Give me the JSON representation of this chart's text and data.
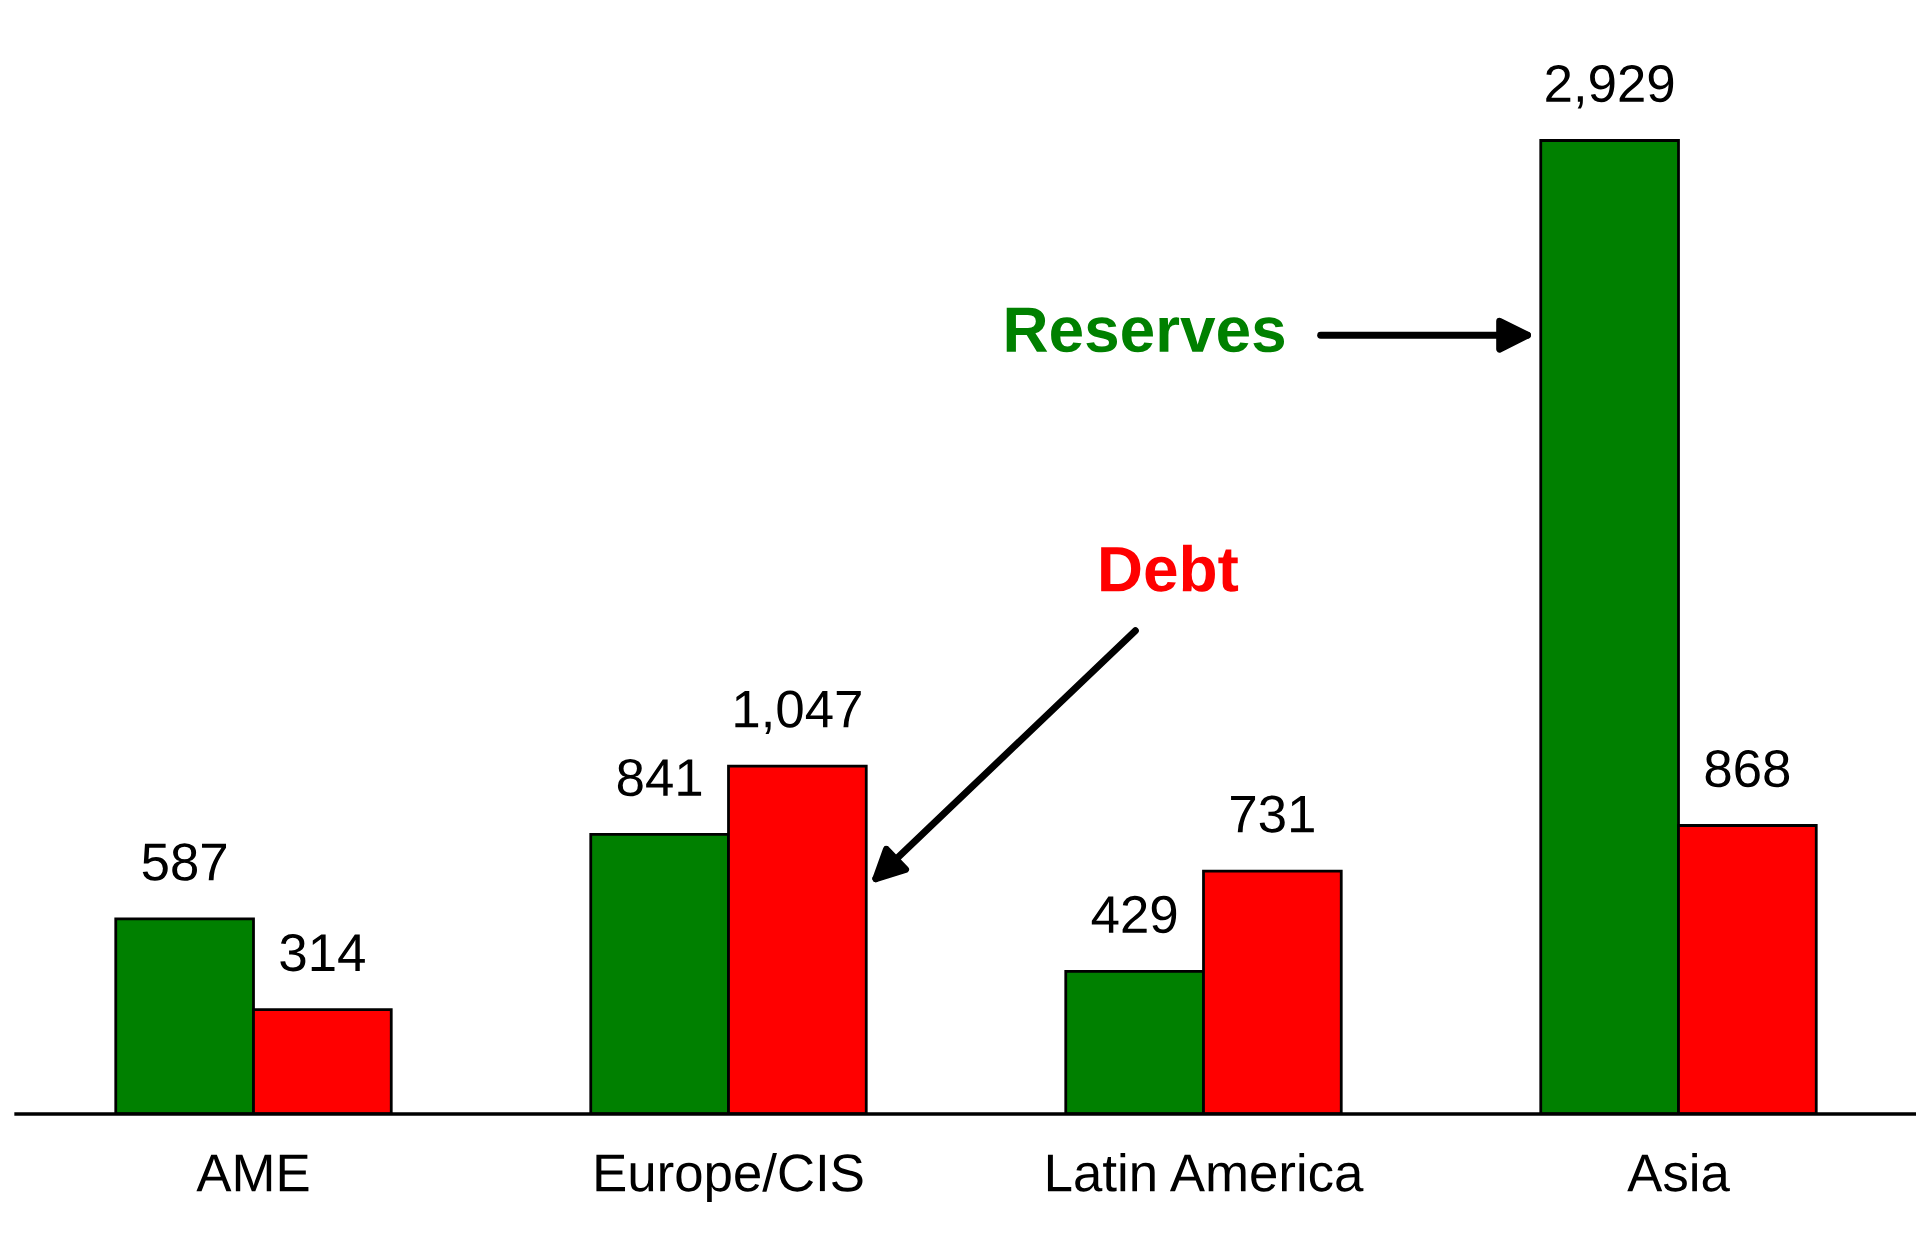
{
  "chart_data": {
    "type": "bar",
    "categories": [
      "AME",
      "Europe/CIS",
      "Latin America",
      "Asia"
    ],
    "series": [
      {
        "name": "Reserves",
        "color": "#008000",
        "values": [
          587,
          841,
          429,
          2929
        ],
        "value_labels": [
          "587",
          "841",
          "429",
          "2,929"
        ]
      },
      {
        "name": "Debt",
        "color": "#ff0000",
        "values": [
          314,
          1047,
          731,
          868
        ],
        "value_labels": [
          "314",
          "1,047",
          "731",
          "868"
        ]
      }
    ],
    "grid": false
  }
}
